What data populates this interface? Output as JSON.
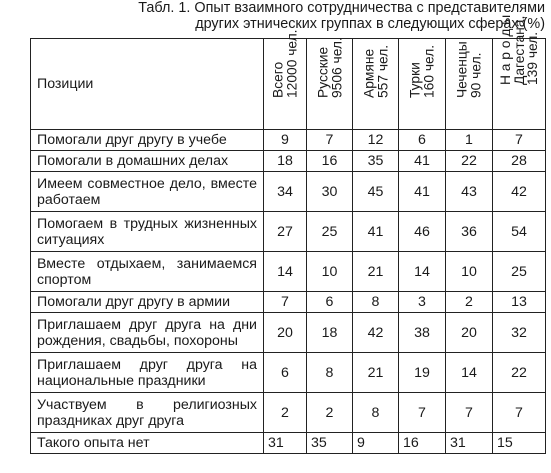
{
  "caption": {
    "line1": "Табл. 1. Опыт взаимного сотрудничества с представителями",
    "line2": "других этнических группах в следующих сферах (%)"
  },
  "table": {
    "position_header": "Позиции",
    "columns": [
      "Всего\n12000 чел.",
      "Русские\n9506 чел.",
      "Армяне\n557 чел.",
      "Турки\n160 чел.",
      "Чеченцы\n90 чел.",
      "Н а р о д ы\nДагестана,\n139 чел."
    ],
    "rows": [
      {
        "label": "Помогали друг другу в учебе",
        "values": [
          "9",
          "7",
          "12",
          "6",
          "1",
          "7"
        ]
      },
      {
        "label": "Помогали в домашних делах",
        "values": [
          "18",
          "16",
          "35",
          "41",
          "22",
          "28"
        ]
      },
      {
        "label": "Имеем совместное дело, вместе работаем",
        "values": [
          "34",
          "30",
          "45",
          "41",
          "43",
          "42"
        ]
      },
      {
        "label": "Помогаем в трудных жизненных ситуациях",
        "values": [
          "27",
          "25",
          "41",
          "46",
          "36",
          "54"
        ]
      },
      {
        "label": "Вместе отдыхаем, занимаемся спортом",
        "values": [
          "14",
          "10",
          "21",
          "14",
          "10",
          "25"
        ]
      },
      {
        "label": "Помогали друг другу в армии",
        "values": [
          "7",
          "6",
          "8",
          "3",
          "2",
          "13"
        ]
      },
      {
        "label": "Приглашаем друг друга на дни рождения, свадьбы, похороны",
        "values": [
          "20",
          "18",
          "42",
          "38",
          "20",
          "32"
        ]
      },
      {
        "label": "Приглашаем друг друга на национальные праздники",
        "values": [
          "6",
          "8",
          "21",
          "19",
          "14",
          "22"
        ]
      },
      {
        "label": "Участвуем в религиозных праздниках друг друга",
        "values": [
          "2",
          "2",
          "8",
          "7",
          "7",
          "7"
        ]
      },
      {
        "label": "Такого опыта нет",
        "values": [
          "31",
          "35",
          "9",
          "16",
          "31",
          "15"
        ]
      }
    ]
  }
}
